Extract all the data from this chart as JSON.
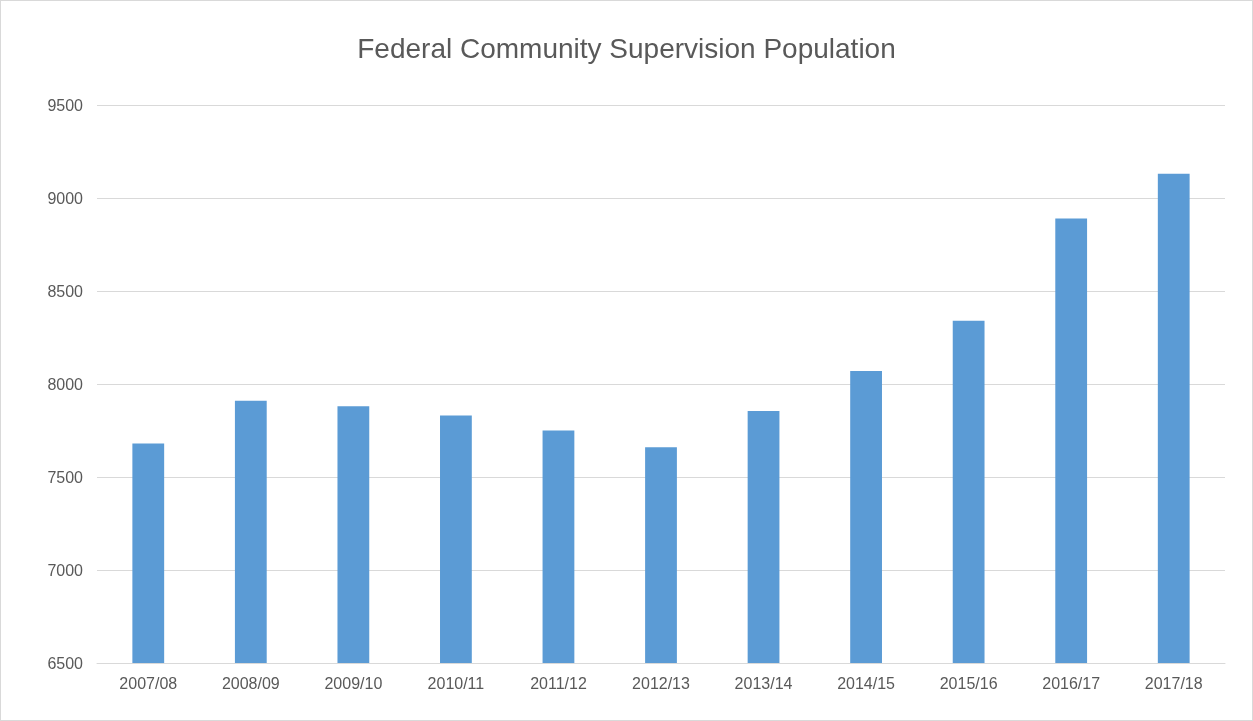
{
  "chart_data": {
    "type": "bar",
    "title": "Federal Community Supervision Population",
    "categories": [
      "2007/08",
      "2008/09",
      "2009/10",
      "2010/11",
      "2011/12",
      "2012/13",
      "2013/14",
      "2014/15",
      "2015/16",
      "2016/17",
      "2017/18"
    ],
    "values": [
      7680,
      7910,
      7880,
      7830,
      7750,
      7660,
      7855,
      8070,
      8340,
      8890,
      9130
    ],
    "color": "#5b9bd5",
    "ylim": [
      6500,
      9500
    ],
    "yticks": [
      6500,
      7000,
      7500,
      8000,
      8500,
      9000,
      9500
    ],
    "grid": "y"
  }
}
